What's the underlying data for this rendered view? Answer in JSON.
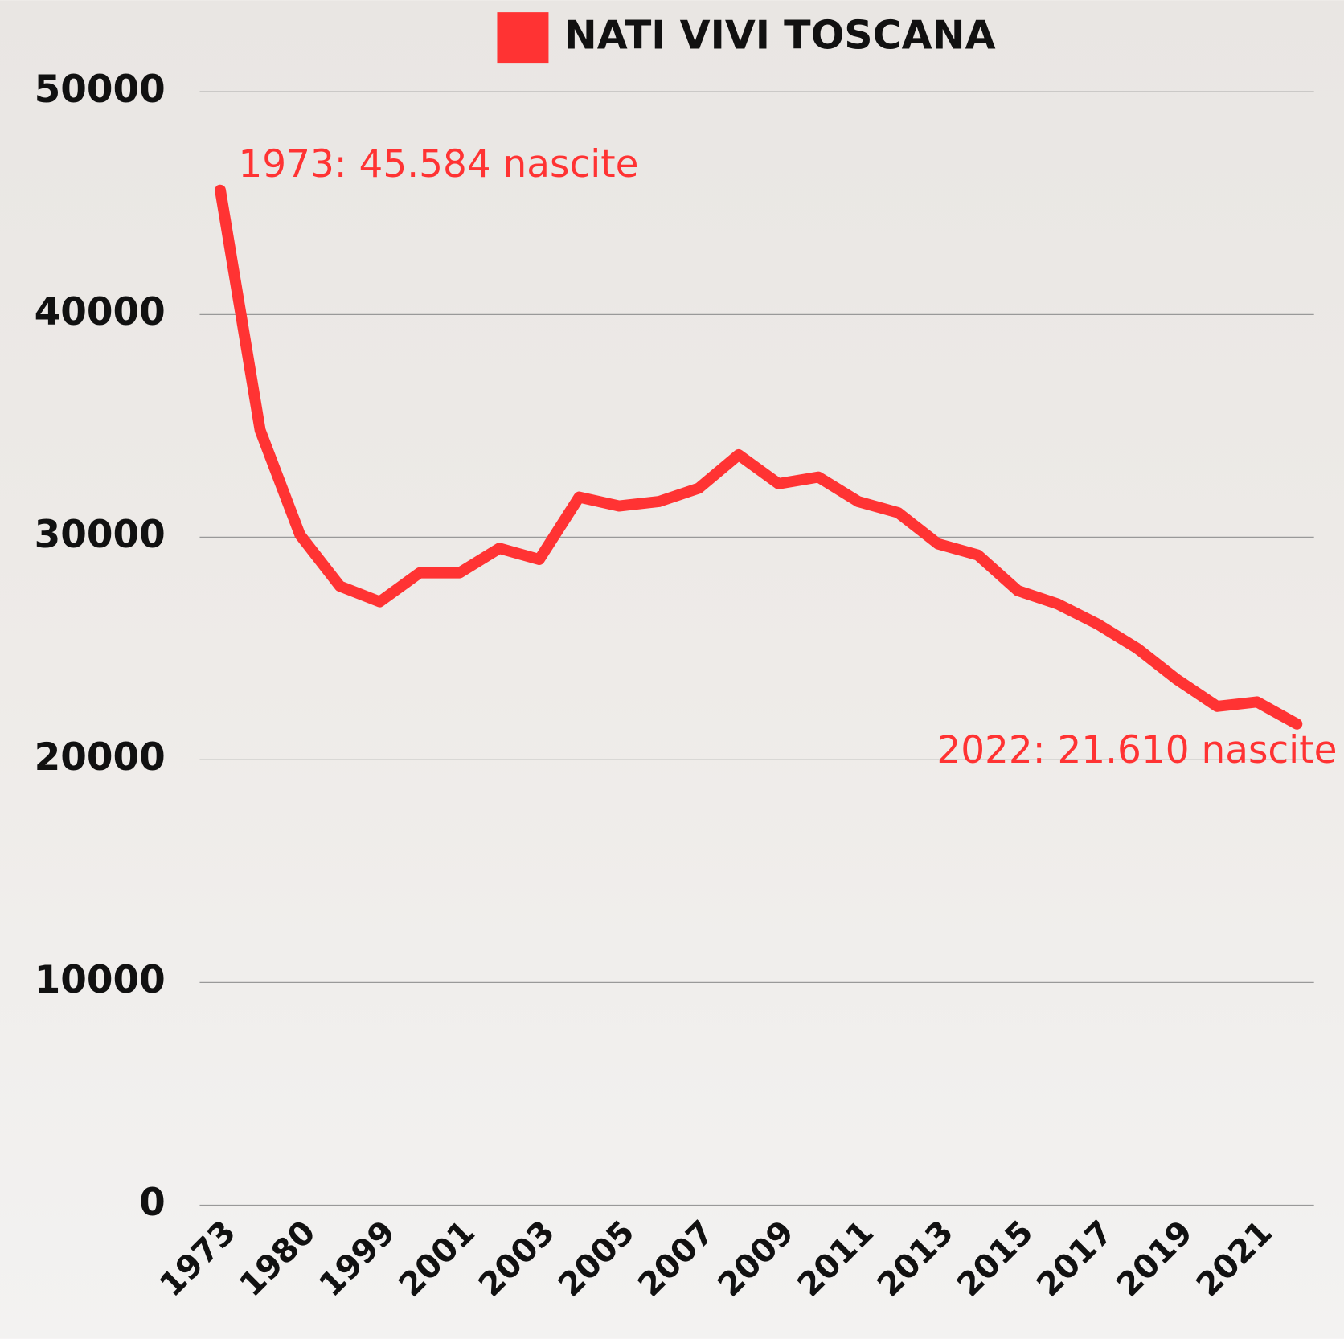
{
  "chart_data": {
    "type": "line",
    "categories": [
      "1973",
      null,
      "1980",
      null,
      "1999",
      null,
      "2001",
      null,
      "2003",
      null,
      "2005",
      null,
      "2007",
      null,
      "2009",
      null,
      "2011",
      null,
      "2013",
      null,
      "2015",
      null,
      "2017",
      null,
      "2019",
      null,
      "2021",
      null
    ],
    "series": [
      {
        "name": "NATI VIVI TOSCANA",
        "color": "#ff3333",
        "values": [
          45584,
          34800,
          30100,
          27800,
          27100,
          28400,
          28400,
          29500,
          29000,
          31800,
          31400,
          31600,
          32200,
          33700,
          32400,
          32700,
          31600,
          31100,
          29700,
          29200,
          27600,
          27000,
          26100,
          25000,
          23600,
          22400,
          22600,
          21610
        ]
      }
    ],
    "annotations": [
      {
        "text": "1973: 45.584 nascite",
        "index": 0
      },
      {
        "text": "2022: 21.610 nascite",
        "index": 27
      }
    ],
    "ylim": [
      0,
      50000
    ],
    "yticks": [
      0,
      10000,
      20000,
      30000,
      40000,
      50000
    ],
    "grid": true,
    "legend": "top"
  }
}
